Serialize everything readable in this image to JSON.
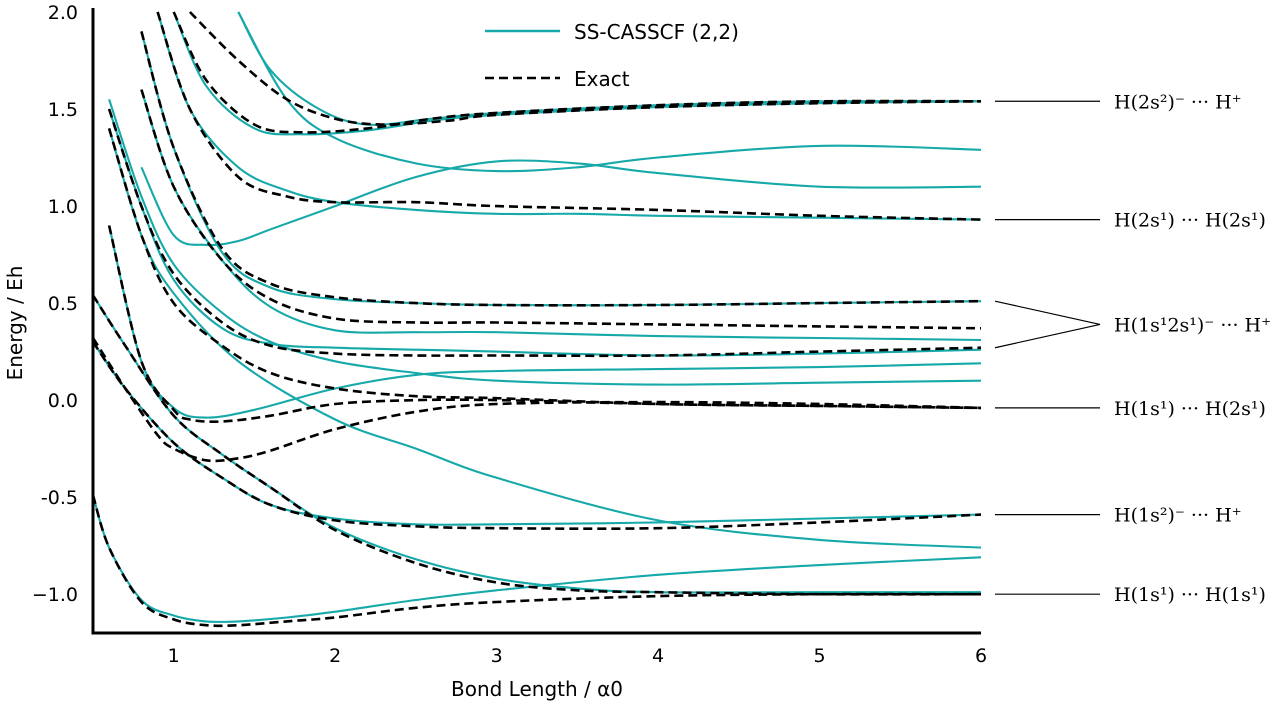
{
  "chart_data": {
    "type": "line",
    "xlabel": "Bond Length / α0",
    "ylabel": "Energy / Eh",
    "xlim": [
      0.5,
      6
    ],
    "ylim": [
      -1.2,
      2.0
    ],
    "x_ticks": [
      "1",
      "2",
      "3",
      "4",
      "5",
      "6"
    ],
    "x_tick_values": [
      1,
      2,
      3,
      4,
      5,
      6
    ],
    "y_ticks": [
      "−1.0",
      "-0.5",
      "0.0",
      "0.5",
      "1.0",
      "1.5",
      "2.0"
    ],
    "y_tick_values": [
      -1.0,
      -0.5,
      0.0,
      0.5,
      1.0,
      1.5,
      2.0
    ],
    "colors": {
      "casscf": "#17a9a9",
      "exact": "#000000"
    },
    "legend": {
      "position": "top-center",
      "entries": [
        {
          "label": "SS-CASSCF (2,2)",
          "style": "solid",
          "color": "#17a9a9"
        },
        {
          "label": "Exact",
          "style": "dashed",
          "color": "#000000"
        }
      ]
    },
    "state_labels": [
      {
        "text": "H(2s²)⁻ ··· H⁺",
        "targets": [
          1.54
        ]
      },
      {
        "text": "H(2s¹) ··· H(2s¹)",
        "targets": [
          0.93
        ]
      },
      {
        "text": "H(1s¹2s¹)⁻ ··· H⁺",
        "targets": [
          0.51,
          0.27
        ]
      },
      {
        "text": "H(1s¹) ··· H(2s¹)",
        "targets": [
          -0.04
        ]
      },
      {
        "text": "H(1s²)⁻ ··· H⁺",
        "targets": [
          -0.59
        ]
      },
      {
        "text": "H(1s¹) ··· H(1s¹)",
        "targets": [
          -1.0
        ]
      }
    ],
    "series": [
      {
        "style": "exact",
        "x": [
          0.5,
          0.6,
          0.8,
          1.0,
          1.2,
          1.4,
          1.7,
          2.0,
          2.5,
          3.0,
          4.0,
          5.0,
          6.0
        ],
        "y": [
          -0.49,
          -0.76,
          -1.04,
          -1.13,
          -1.16,
          -1.16,
          -1.14,
          -1.12,
          -1.07,
          -1.04,
          -1.01,
          -1.0,
          -1.0
        ]
      },
      {
        "style": "exact",
        "x": [
          0.5,
          0.7,
          1.0,
          1.3,
          1.6,
          2.0,
          2.5,
          3.0,
          4.0,
          5.0,
          6.0
        ],
        "y": [
          0.3,
          0.06,
          -0.22,
          -0.4,
          -0.54,
          -0.62,
          -0.65,
          -0.66,
          -0.66,
          -0.63,
          -0.59
        ]
      },
      {
        "style": "exact",
        "x": [
          0.5,
          0.7,
          1.0,
          1.3,
          1.6,
          2.0,
          2.5,
          3.0,
          3.5,
          4.0,
          5.0,
          6.0
        ],
        "y": [
          0.54,
          0.28,
          -0.08,
          -0.28,
          -0.45,
          -0.67,
          -0.84,
          -0.94,
          -0.98,
          -0.99,
          -1.0,
          -1.0
        ]
      },
      {
        "style": "exact",
        "x": [
          0.5,
          0.7,
          0.9,
          1.0,
          1.2,
          1.4,
          1.6,
          2.0,
          2.5,
          3.0,
          4.0,
          5.0,
          6.0
        ],
        "y": [
          0.32,
          0.06,
          -0.18,
          -0.25,
          -0.31,
          -0.3,
          -0.26,
          -0.15,
          -0.06,
          -0.02,
          -0.01,
          -0.02,
          -0.04
        ]
      },
      {
        "style": "exact",
        "x": [
          0.6,
          0.8,
          1.0,
          1.1,
          1.3,
          1.6,
          2.0,
          2.5,
          3.0,
          4.0,
          5.0,
          6.0
        ],
        "y": [
          0.9,
          0.2,
          -0.05,
          -0.1,
          -0.11,
          -0.08,
          -0.02,
          0.0,
          0.0,
          -0.02,
          -0.03,
          -0.04
        ]
      },
      {
        "style": "exact",
        "x": [
          0.6,
          0.8,
          1.0,
          1.3,
          1.6,
          2.0,
          2.5,
          3.0,
          4.0,
          5.0,
          6.0
        ],
        "y": [
          1.4,
          0.85,
          0.5,
          0.28,
          0.14,
          0.06,
          0.02,
          0.01,
          -0.02,
          -0.03,
          -0.04
        ]
      },
      {
        "style": "exact",
        "x": [
          0.6,
          0.8,
          1.0,
          1.3,
          1.6,
          2.0,
          2.5,
          3.0,
          4.0,
          5.0,
          6.0
        ],
        "y": [
          1.5,
          1.0,
          0.65,
          0.4,
          0.28,
          0.24,
          0.23,
          0.23,
          0.23,
          0.25,
          0.27
        ]
      },
      {
        "style": "exact",
        "x": [
          0.8,
          1.0,
          1.3,
          1.6,
          2.0,
          2.5,
          3.0,
          4.0,
          5.0,
          6.0
        ],
        "y": [
          1.6,
          1.1,
          0.72,
          0.52,
          0.42,
          0.4,
          0.4,
          0.39,
          0.38,
          0.37
        ]
      },
      {
        "style": "exact",
        "x": [
          0.8,
          1.0,
          1.3,
          1.6,
          2.0,
          2.5,
          3.0,
          4.0,
          5.0,
          6.0
        ],
        "y": [
          1.9,
          1.3,
          0.78,
          0.6,
          0.53,
          0.5,
          0.49,
          0.49,
          0.5,
          0.51
        ]
      },
      {
        "style": "exact",
        "x": [
          0.9,
          1.1,
          1.4,
          1.7,
          2.0,
          2.5,
          3.0,
          4.0,
          5.0,
          6.0
        ],
        "y": [
          2.0,
          1.5,
          1.15,
          1.05,
          1.02,
          1.02,
          1.0,
          0.98,
          0.95,
          0.93
        ]
      },
      {
        "style": "exact",
        "x": [
          1.0,
          1.2,
          1.5,
          1.8,
          2.2,
          2.6,
          3.0,
          4.0,
          5.0,
          6.0
        ],
        "y": [
          2.0,
          1.65,
          1.42,
          1.38,
          1.4,
          1.45,
          1.48,
          1.52,
          1.54,
          1.54
        ]
      },
      {
        "style": "exact",
        "x": [
          1.1,
          1.4,
          1.7,
          2.0,
          2.3,
          2.7,
          3.0,
          4.0,
          5.0,
          6.0
        ],
        "y": [
          2.0,
          1.75,
          1.55,
          1.45,
          1.42,
          1.44,
          1.47,
          1.51,
          1.53,
          1.54
        ]
      },
      {
        "style": "casscf",
        "x": [
          0.5,
          0.6,
          0.8,
          1.0,
          1.2,
          1.4,
          1.7,
          2.0,
          2.5,
          3.0,
          4.0,
          5.0,
          6.0
        ],
        "y": [
          -0.49,
          -0.76,
          -1.03,
          -1.11,
          -1.14,
          -1.14,
          -1.12,
          -1.09,
          -1.03,
          -0.98,
          -0.9,
          -0.85,
          -0.81
        ]
      },
      {
        "style": "casscf",
        "x": [
          0.5,
          0.7,
          1.0,
          1.3,
          1.6,
          2.0,
          2.5,
          3.0,
          4.0,
          5.0,
          6.0
        ],
        "y": [
          0.3,
          0.06,
          -0.22,
          -0.4,
          -0.54,
          -0.61,
          -0.64,
          -0.64,
          -0.63,
          -0.61,
          -0.59
        ]
      },
      {
        "style": "casscf",
        "x": [
          0.5,
          0.7,
          1.0,
          1.3,
          1.6,
          2.0,
          2.5,
          3.0,
          3.5,
          4.0,
          5.0,
          6.0
        ],
        "y": [
          0.54,
          0.28,
          -0.08,
          -0.28,
          -0.45,
          -0.66,
          -0.82,
          -0.92,
          -0.97,
          -0.99,
          -0.99,
          -0.99
        ]
      },
      {
        "style": "casscf",
        "x": [
          0.6,
          0.8,
          1.0,
          1.4,
          2.0,
          2.5,
          3.0,
          4.0,
          5.0,
          6.0
        ],
        "y": [
          1.4,
          0.85,
          0.55,
          0.2,
          -0.1,
          -0.25,
          -0.4,
          -0.62,
          -0.72,
          -0.76
        ]
      },
      {
        "style": "casscf",
        "x": [
          0.6,
          0.8,
          1.0,
          1.2,
          1.5,
          2.0,
          2.5,
          3.0,
          4.0,
          5.0,
          6.0
        ],
        "y": [
          0.9,
          0.2,
          -0.04,
          -0.09,
          -0.05,
          0.06,
          0.13,
          0.15,
          0.16,
          0.17,
          0.19
        ]
      },
      {
        "style": "casscf",
        "x": [
          0.6,
          0.8,
          1.0,
          1.3,
          1.6,
          2.0,
          2.5,
          3.0,
          4.0,
          5.0,
          6.0
        ],
        "y": [
          1.5,
          1.0,
          0.62,
          0.37,
          0.29,
          0.27,
          0.26,
          0.25,
          0.23,
          0.24,
          0.26
        ]
      },
      {
        "style": "casscf",
        "x": [
          0.8,
          1.0,
          1.3,
          1.6,
          2.0,
          2.5,
          3.0,
          4.0,
          5.0,
          6.0
        ],
        "y": [
          1.6,
          1.1,
          0.72,
          0.48,
          0.36,
          0.35,
          0.35,
          0.33,
          0.32,
          0.31
        ]
      },
      {
        "style": "casscf",
        "x": [
          0.8,
          1.0,
          1.2,
          1.4,
          1.6,
          2.0,
          2.5,
          3.0,
          3.5,
          4.0,
          5.0,
          6.0
        ],
        "y": [
          1.2,
          0.85,
          0.8,
          0.82,
          0.88,
          1.0,
          1.15,
          1.23,
          1.22,
          1.17,
          1.1,
          1.1
        ]
      },
      {
        "style": "casscf",
        "x": [
          0.9,
          1.1,
          1.4,
          1.7,
          2.0,
          2.5,
          3.0,
          3.5,
          4.0,
          5.0,
          6.0
        ],
        "y": [
          2.0,
          1.5,
          1.2,
          1.08,
          1.02,
          0.98,
          0.96,
          0.96,
          0.95,
          0.94,
          0.93
        ]
      },
      {
        "style": "casscf",
        "x": [
          1.4,
          1.7,
          2.0,
          2.5,
          3.0,
          3.5,
          4.0,
          5.0,
          6.0
        ],
        "y": [
          2.0,
          1.55,
          1.35,
          1.22,
          1.18,
          1.2,
          1.25,
          1.31,
          1.29
        ]
      },
      {
        "style": "casscf",
        "x": [
          1.4,
          1.6,
          1.9,
          2.2,
          2.6,
          3.0,
          4.0,
          5.0,
          6.0
        ],
        "y": [
          2.0,
          1.7,
          1.5,
          1.42,
          1.45,
          1.48,
          1.52,
          1.54,
          1.54
        ]
      },
      {
        "style": "casscf",
        "x": [
          1.0,
          1.2,
          1.5,
          1.8,
          2.2,
          2.6,
          3.0,
          4.0,
          5.0,
          6.0
        ],
        "y": [
          2.0,
          1.62,
          1.4,
          1.37,
          1.39,
          1.44,
          1.47,
          1.51,
          1.53,
          1.54
        ]
      },
      {
        "style": "casscf",
        "x": [
          0.8,
          1.0,
          1.3,
          1.6,
          2.0,
          2.5,
          3.0,
          4.0,
          5.0,
          6.0
        ],
        "y": [
          1.9,
          1.3,
          0.76,
          0.58,
          0.52,
          0.5,
          0.49,
          0.49,
          0.5,
          0.51
        ]
      },
      {
        "style": "casscf",
        "x": [
          0.6,
          0.8,
          1.0,
          1.3,
          1.6,
          2.0,
          2.5,
          3.0,
          4.0,
          5.0,
          6.0
        ],
        "y": [
          1.55,
          1.05,
          0.7,
          0.45,
          0.3,
          0.2,
          0.14,
          0.1,
          0.08,
          0.09,
          0.1
        ]
      }
    ]
  }
}
